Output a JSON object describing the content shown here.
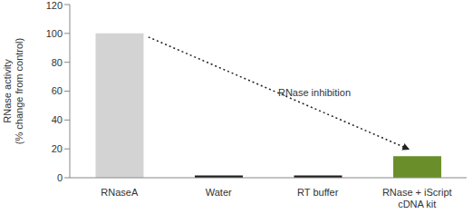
{
  "chart_data": {
    "type": "bar",
    "y_label": "RNase activity (% change from control)",
    "categories": [
      "RNaseA",
      "Water",
      "RT buffer",
      "RNase + iScript cDNA kit"
    ],
    "values": [
      100,
      1.5,
      1.5,
      15
    ],
    "colors": [
      "#d3d3d3",
      "#1e1e1e",
      "#1e1e1e",
      "#6a8f2a"
    ],
    "ylim": [
      0,
      120
    ],
    "yticks": [
      0,
      20,
      40,
      60,
      80,
      100,
      120
    ],
    "grid": false,
    "annotations": [
      {
        "text": "RNase inhibition",
        "from": "RNaseA",
        "to": "RNase + iScript cDNA kit"
      }
    ]
  }
}
